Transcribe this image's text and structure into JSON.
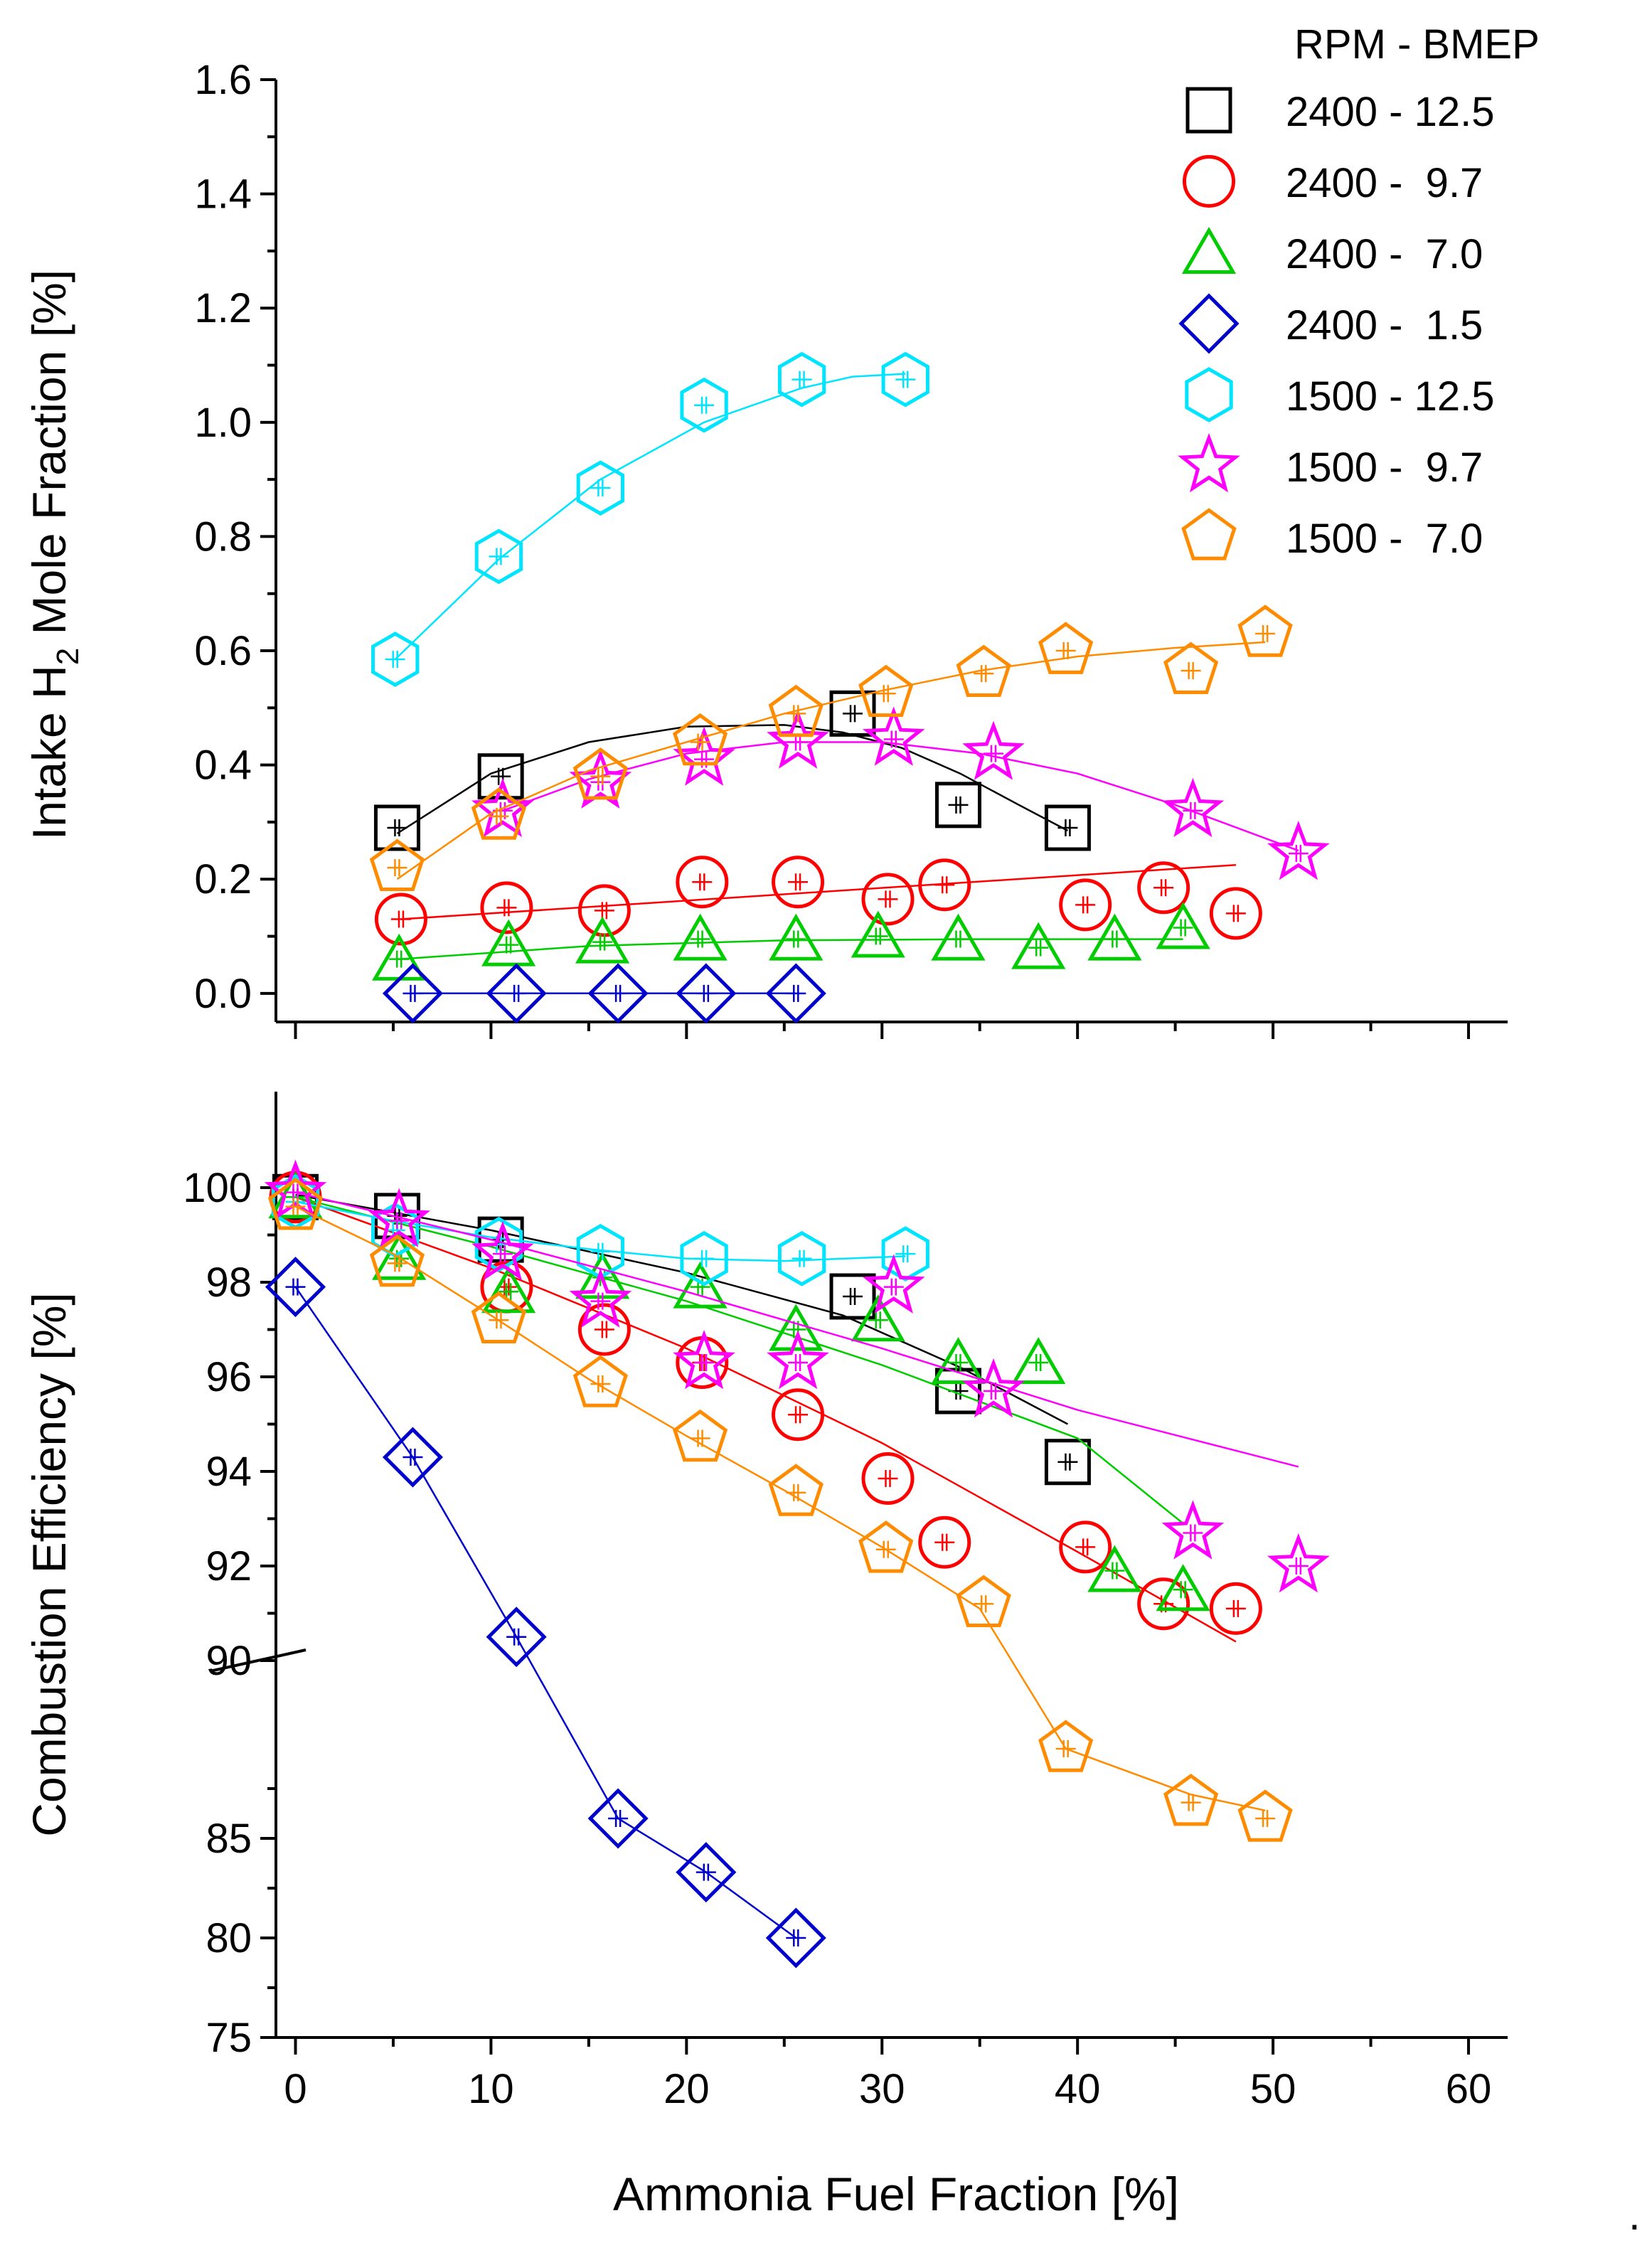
{
  "chart_data": [
    {
      "type": "scatter",
      "panel": "top",
      "ylabel_parts": [
        "Intake H",
        "2",
        " Mole Fraction [%]"
      ],
      "xlim": [
        -1,
        62
      ],
      "ylim": [
        -0.05,
        1.6
      ],
      "y_ticks": [
        0.0,
        0.2,
        0.4,
        0.6,
        0.8,
        1.0,
        1.2,
        1.4,
        1.6
      ],
      "y_tick_labels": [
        "0.0",
        "0.2",
        "0.4",
        "0.6",
        "0.8",
        "1.0",
        "1.2",
        "1.4",
        "1.6"
      ],
      "legend": {
        "title": "RPM - BMEP",
        "position": "top-right",
        "entries": [
          "2400 - 12.5",
          "2400 -  9.7",
          "2400 -  7.0",
          "2400 -  1.5",
          "1500 - 12.5",
          "1500 -  9.7",
          "1500 -  7.0"
        ]
      },
      "series": [
        {
          "name": "2400 - 12.5",
          "color": "#000000",
          "marker": "square",
          "x": [
            5.2,
            10.5,
            28.5,
            33.9,
            39.5
          ],
          "y": [
            0.29,
            0.38,
            0.49,
            0.33,
            0.29
          ],
          "fit": [
            [
              5.2,
              0.28
            ],
            [
              10,
              0.385
            ],
            [
              15,
              0.44
            ],
            [
              20,
              0.467
            ],
            [
              25,
              0.47
            ],
            [
              28,
              0.457
            ],
            [
              31,
              0.43
            ],
            [
              34,
              0.385
            ],
            [
              37,
              0.33
            ],
            [
              39.5,
              0.285
            ]
          ]
        },
        {
          "name": "2400 -  9.7",
          "color": "#ff0000",
          "marker": "circle",
          "x": [
            5.4,
            10.8,
            15.8,
            20.8,
            25.7,
            30.3,
            33.2,
            40.4,
            44.4,
            48.1
          ],
          "y": [
            0.13,
            0.15,
            0.145,
            0.195,
            0.195,
            0.165,
            0.19,
            0.155,
            0.185,
            0.14
          ],
          "fit": [
            [
              5.4,
              0.13
            ],
            [
              48.1,
              0.225
            ]
          ]
        },
        {
          "name": "2400 -  7.0",
          "color": "#00cc00",
          "marker": "triangle",
          "x": [
            5.3,
            10.9,
            15.7,
            20.7,
            25.6,
            29.8,
            33.9,
            38.0,
            41.9,
            45.4
          ],
          "y": [
            0.06,
            0.085,
            0.09,
            0.095,
            0.095,
            0.1,
            0.095,
            0.08,
            0.095,
            0.115
          ],
          "fit": [
            [
              5.3,
              0.06
            ],
            [
              15,
              0.083
            ],
            [
              25,
              0.093
            ],
            [
              35,
              0.095
            ],
            [
              45.4,
              0.095
            ]
          ]
        },
        {
          "name": "2400 -  1.5",
          "color": "#0000cc",
          "marker": "diamond",
          "x": [
            6.0,
            11.3,
            16.5,
            21.0,
            25.6
          ],
          "y": [
            0.0,
            0.0,
            0.0,
            0.0,
            0.0
          ],
          "fit": [
            [
              6.0,
              0.0
            ],
            [
              25.6,
              0.0
            ]
          ]
        },
        {
          "name": "1500 - 12.5",
          "color": "#00e5ff",
          "marker": "hexagon",
          "x": [
            5.1,
            10.4,
            15.6,
            20.9,
            25.9,
            31.2
          ],
          "y": [
            0.585,
            0.765,
            0.885,
            1.03,
            1.075,
            1.075
          ],
          "fit": [
            [
              5.1,
              0.585
            ],
            [
              10.4,
              0.76
            ],
            [
              15.6,
              0.9
            ],
            [
              20.9,
              1.0
            ],
            [
              25.9,
              1.06
            ],
            [
              28.5,
              1.08
            ],
            [
              31.2,
              1.085
            ]
          ]
        },
        {
          "name": "1500 -  9.7",
          "color": "#ff00ff",
          "marker": "star",
          "x": [
            10.6,
            15.6,
            20.9,
            25.7,
            30.6,
            35.7,
            45.9,
            51.3
          ],
          "y": [
            0.32,
            0.37,
            0.41,
            0.44,
            0.445,
            0.42,
            0.32,
            0.245
          ],
          "fit": [
            [
              10.6,
              0.32
            ],
            [
              15,
              0.375
            ],
            [
              20,
              0.42
            ],
            [
              25,
              0.44
            ],
            [
              30,
              0.44
            ],
            [
              35,
              0.42
            ],
            [
              40,
              0.385
            ],
            [
              45,
              0.33
            ],
            [
              51.3,
              0.25
            ]
          ]
        },
        {
          "name": "1500 -  7.0",
          "color": "#ff8c00",
          "marker": "pentagon",
          "x": [
            5.2,
            10.4,
            15.6,
            20.7,
            25.6,
            30.2,
            35.2,
            39.4,
            45.8,
            49.6
          ],
          "y": [
            0.22,
            0.31,
            0.38,
            0.44,
            0.49,
            0.525,
            0.56,
            0.6,
            0.565,
            0.63
          ],
          "fit": [
            [
              5.2,
              0.2
            ],
            [
              10,
              0.315
            ],
            [
              15,
              0.39
            ],
            [
              20,
              0.44
            ],
            [
              25,
              0.49
            ],
            [
              30,
              0.53
            ],
            [
              35,
              0.565
            ],
            [
              40,
              0.59
            ],
            [
              45,
              0.605
            ],
            [
              49.6,
              0.615
            ]
          ]
        }
      ]
    },
    {
      "type": "scatter",
      "panel": "bottom",
      "xlabel": "Ammonia Fuel Fraction [%]",
      "ylabel": "Combustion Efficiency [%]",
      "xlim": [
        -1,
        62
      ],
      "x_ticks": [
        0,
        10,
        20,
        30,
        40,
        50,
        60
      ],
      "x_tick_labels": [
        "0",
        "10",
        "20",
        "30",
        "40",
        "50",
        "60"
      ],
      "y_axis_broken": true,
      "y_ticks": [
        75,
        80,
        85,
        90,
        92,
        94,
        96,
        98,
        100
      ],
      "y_tick_labels": [
        "75",
        "80",
        "85",
        "90",
        "92",
        "94",
        "96",
        "98",
        "100"
      ],
      "series": [
        {
          "name": "2400 - 12.5",
          "color": "#000000",
          "marker": "square",
          "x": [
            0,
            5.2,
            10.5,
            28.5,
            33.9,
            39.5
          ],
          "y": [
            99.8,
            99.4,
            98.9,
            97.7,
            95.7,
            94.2
          ],
          "fit": [
            [
              0,
              99.85
            ],
            [
              10,
              99.1
            ],
            [
              20,
              98.2
            ],
            [
              28,
              97.3
            ],
            [
              34,
              96.2
            ],
            [
              39.5,
              95.0
            ]
          ]
        },
        {
          "name": "2400 -  9.7",
          "color": "#ff0000",
          "marker": "circle",
          "x": [
            0,
            10.8,
            15.8,
            20.8,
            25.7,
            30.3,
            33.2,
            40.4,
            44.4,
            48.1
          ],
          "y": [
            99.8,
            97.9,
            97.0,
            96.3,
            95.2,
            93.85,
            92.5,
            92.4,
            91.2,
            91.1
          ],
          "fit": [
            [
              0,
              99.8
            ],
            [
              10,
              98.3
            ],
            [
              20,
              96.6
            ],
            [
              30,
              94.6
            ],
            [
              40,
              92.3
            ],
            [
              48.1,
              90.4
            ]
          ]
        },
        {
          "name": "2400 -  7.0",
          "color": "#00cc00",
          "marker": "triangle",
          "x": [
            0,
            5.3,
            10.9,
            15.7,
            20.7,
            25.6,
            29.8,
            33.9,
            38.0,
            41.9,
            45.4
          ],
          "y": [
            99.8,
            98.5,
            97.8,
            98.1,
            97.9,
            97.0,
            97.2,
            96.3,
            96.3,
            91.9,
            91.5
          ],
          "fit": [
            [
              0,
              99.8
            ],
            [
              10,
              98.75
            ],
            [
              20,
              97.6
            ],
            [
              30,
              96.25
            ],
            [
              40,
              94.7
            ],
            [
              45.4,
              92.9
            ]
          ]
        },
        {
          "name": "2400 -  1.5",
          "color": "#0000cc",
          "marker": "diamond",
          "x": [
            0,
            6.0,
            11.3,
            16.5,
            21.0,
            25.6
          ],
          "y": [
            97.9,
            94.3,
            90.5,
            86.0,
            83.3,
            80.0
          ],
          "fit": [
            [
              0,
              97.9
            ],
            [
              6.0,
              94.3
            ],
            [
              11.3,
              90.5
            ],
            [
              16.5,
              86.0
            ],
            [
              21.0,
              83.3
            ],
            [
              25.6,
              80.0
            ]
          ]
        },
        {
          "name": "1500 - 12.5",
          "color": "#00e5ff",
          "marker": "hexagon",
          "x": [
            0,
            5.1,
            10.4,
            15.6,
            20.9,
            25.9,
            31.2
          ],
          "y": [
            99.7,
            99.1,
            98.8,
            98.65,
            98.5,
            98.5,
            98.6
          ],
          "fit": [
            [
              0,
              99.7
            ],
            [
              5,
              99.3
            ],
            [
              10,
              98.95
            ],
            [
              15,
              98.7
            ],
            [
              20,
              98.5
            ],
            [
              25,
              98.45
            ],
            [
              31.2,
              98.55
            ]
          ]
        },
        {
          "name": "1500 -  9.7",
          "color": "#ff00ff",
          "marker": "star",
          "x": [
            0,
            5.3,
            10.6,
            15.6,
            20.9,
            25.7,
            30.6,
            35.7,
            45.9,
            51.3
          ],
          "y": [
            99.9,
            99.3,
            98.6,
            97.6,
            96.3,
            96.3,
            97.9,
            95.7,
            92.7,
            92.0
          ],
          "fit": [
            [
              0,
              99.9
            ],
            [
              10,
              98.9
            ],
            [
              20,
              97.8
            ],
            [
              30,
              96.6
            ],
            [
              40,
              95.3
            ],
            [
              51.3,
              94.1
            ]
          ]
        },
        {
          "name": "1500 -  7.0",
          "color": "#ff8c00",
          "marker": "pentagon",
          "x": [
            0,
            5.2,
            10.4,
            15.6,
            20.7,
            25.6,
            30.2,
            35.2,
            39.4,
            45.8,
            49.6
          ],
          "y": [
            99.6,
            98.4,
            97.2,
            95.85,
            94.7,
            93.55,
            92.35,
            91.2,
            89.5,
            86.8,
            86.0
          ],
          "fit": [
            [
              0,
              99.6
            ],
            [
              5,
              98.6
            ],
            [
              10,
              97.3
            ],
            [
              15,
              95.95
            ],
            [
              20,
              94.75
            ],
            [
              25,
              93.6
            ],
            [
              30,
              92.4
            ],
            [
              35,
              91.1
            ],
            [
              39.4,
              89.5
            ],
            [
              45.8,
              87.2
            ],
            [
              49.6,
              86.4
            ]
          ]
        }
      ]
    }
  ],
  "trailing_mark": "."
}
